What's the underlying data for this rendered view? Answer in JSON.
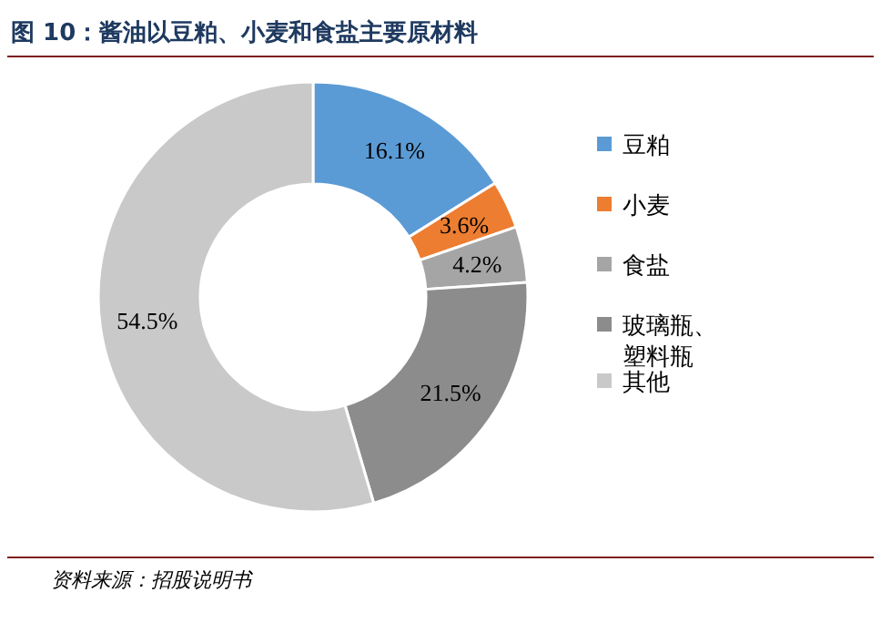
{
  "chart_data": {
    "type": "donut",
    "title": "图 10：酱油以豆粕、小麦和食盐主要原材料",
    "categories": [
      "豆粕",
      "小麦",
      "食盐",
      "玻璃瓶、塑料瓶",
      "其他"
    ],
    "values": [
      16.1,
      3.6,
      4.2,
      21.5,
      54.5
    ],
    "value_labels": [
      "16.1%",
      "3.6%",
      "4.2%",
      "21.5%",
      "54.5%"
    ],
    "colors": [
      "#5b9bd5",
      "#ed7d31",
      "#a5a5a5",
      "#8c8c8c",
      "#c9c9c9"
    ],
    "legend": "right",
    "annotations": [
      "资料来源：招股说明书"
    ]
  }
}
